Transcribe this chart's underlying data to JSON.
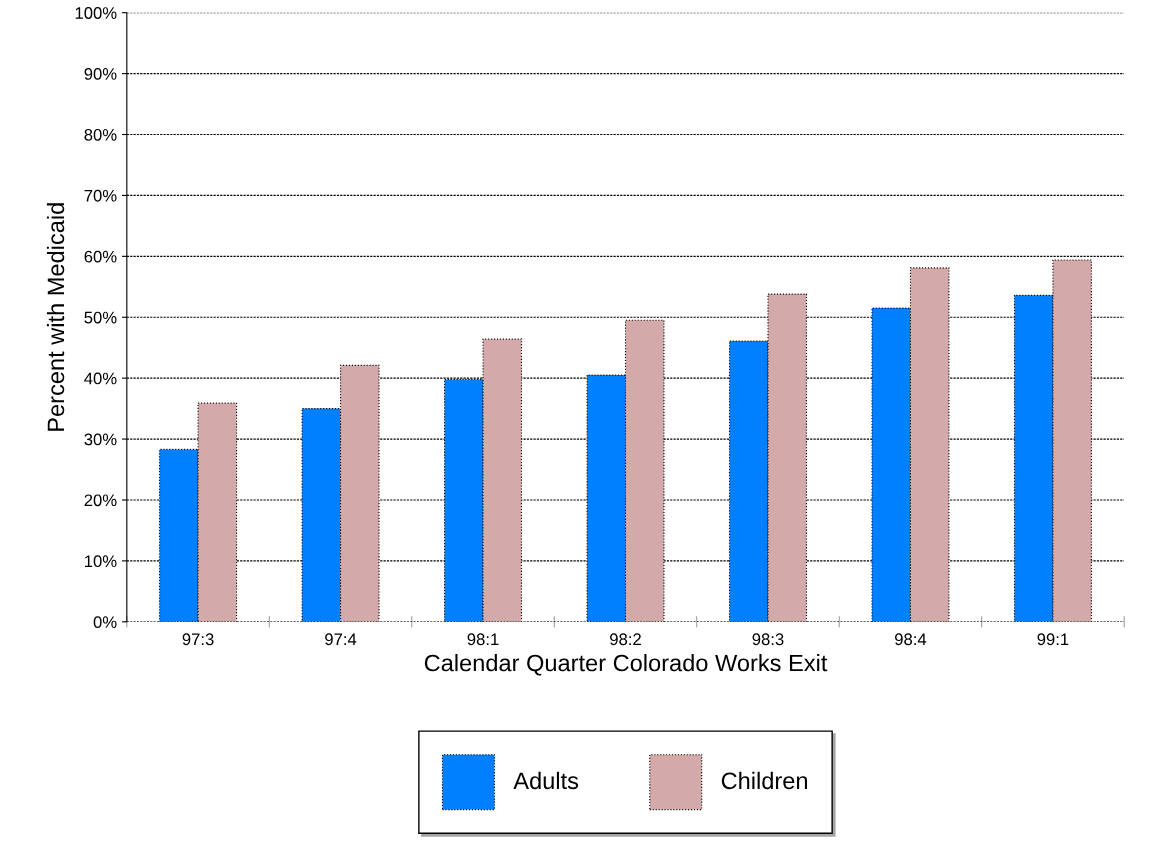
{
  "chart_data": {
    "type": "bar",
    "xlabel": "Calendar Quarter Colorado Works Exit",
    "ylabel": "Percent with Medicaid",
    "categories": [
      "97:3",
      "97:4",
      "98:1",
      "98:2",
      "98:3",
      "98:4",
      "99:1"
    ],
    "series": [
      {
        "name": "Adults",
        "color": "#0080ff",
        "values": [
          28.3,
          35.0,
          39.8,
          40.5,
          46.1,
          51.5,
          53.6
        ]
      },
      {
        "name": "Children",
        "color": "#d4a9a9",
        "values": [
          35.9,
          42.1,
          46.4,
          49.5,
          53.8,
          58.1,
          59.4
        ]
      }
    ],
    "ylim": [
      0,
      100
    ],
    "yticks": [
      {
        "value": 0,
        "label": "0%"
      },
      {
        "value": 10,
        "label": "10%"
      },
      {
        "value": 20,
        "label": "20%"
      },
      {
        "value": 30,
        "label": "30%"
      },
      {
        "value": 40,
        "label": "40%"
      },
      {
        "value": 50,
        "label": "50%"
      },
      {
        "value": 60,
        "label": "60%"
      },
      {
        "value": 70,
        "label": "70%"
      },
      {
        "value": 80,
        "label": "80%"
      },
      {
        "value": 90,
        "label": "90%"
      },
      {
        "value": 100,
        "label": "100%"
      }
    ],
    "grid": "y",
    "legend": "bottom"
  }
}
